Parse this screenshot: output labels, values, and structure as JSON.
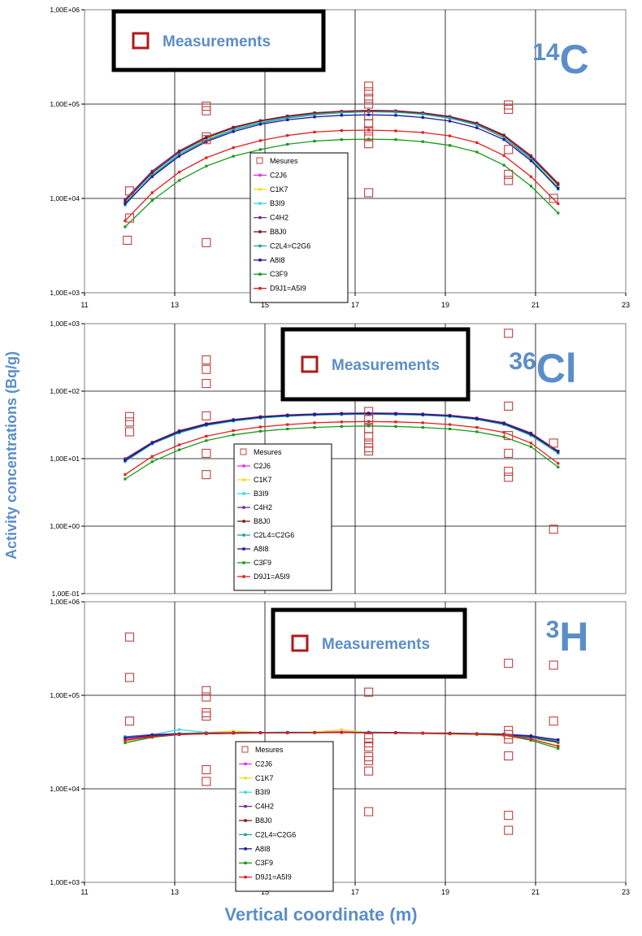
{
  "axes": {
    "ylabel": "Activity concentrations (Bq/g)",
    "xlabel": "Vertical coordinate (m)"
  },
  "legend_series": [
    "Mesures",
    "C2J6",
    "C1K7",
    "B3I9",
    "C4H2",
    "B8J0",
    "C2L4=C2G6",
    "A8I8",
    "C3F9",
    "D9J1=A5I9"
  ],
  "colors": {
    "C2J6": "#e830e8",
    "C1K7": "#f0e020",
    "B3I9": "#40d8e8",
    "C4H2": "#7a2a8a",
    "B8J0": "#7a1a1a",
    "C2L4=C2G6": "#2aa0a0",
    "A8I8": "#1a1aa0",
    "C3F9": "#1a9a1a",
    "D9J1=A5I9": "#e02020",
    "measure": "#c04040",
    "accent": "#5b8ec8"
  },
  "chart_data": [
    {
      "type": "line",
      "panel": "14C",
      "isotope_label": {
        "sup": "14",
        "sym": "C"
      },
      "box_label": "Measurements",
      "xlim": [
        11,
        23
      ],
      "ylim": [
        1000,
        1000000
      ],
      "yscale": "log",
      "x_ticks": [
        11,
        13,
        15,
        17,
        19,
        21,
        23
      ],
      "y_ticks": [
        "1,00E+03",
        "1,00E+04",
        "1,00E+05",
        "1,00E+06"
      ],
      "grid": true,
      "legend_position": "center-bottom",
      "x": [
        11.9,
        12.5,
        13.1,
        13.7,
        14.3,
        14.9,
        15.5,
        16.1,
        16.7,
        17.3,
        17.9,
        18.5,
        19.1,
        19.7,
        20.3,
        20.9,
        21.5
      ],
      "series": [
        {
          "name": "C2J6",
          "values": [
            9500,
            19000,
            31000,
            44000,
            56000,
            66000,
            74000,
            80000,
            83000,
            85000,
            84000,
            80000,
            73000,
            62000,
            46000,
            28000,
            14000
          ]
        },
        {
          "name": "C1K7",
          "values": [
            9300,
            18500,
            30500,
            43000,
            55000,
            65000,
            73000,
            79000,
            82000,
            84000,
            83000,
            79000,
            72000,
            61000,
            45000,
            27000,
            13500
          ]
        },
        {
          "name": "B3I9",
          "values": [
            9000,
            18000,
            30000,
            42000,
            54000,
            64000,
            72000,
            78000,
            81000,
            83000,
            82000,
            78000,
            71000,
            60000,
            44000,
            26500,
            13000
          ]
        },
        {
          "name": "C4H2",
          "values": [
            9800,
            19500,
            32000,
            45000,
            57000,
            67000,
            75000,
            81000,
            84000,
            86000,
            85000,
            81000,
            74000,
            63000,
            47000,
            28500,
            14500
          ]
        },
        {
          "name": "B8J0",
          "values": [
            9400,
            18800,
            31000,
            44000,
            56000,
            66000,
            74000,
            80000,
            83500,
            85000,
            84000,
            80000,
            73000,
            62000,
            46000,
            27500,
            14000
          ]
        },
        {
          "name": "C2L4=C2G6",
          "values": [
            8500,
            17500,
            29000,
            41000,
            53000,
            63000,
            71000,
            77000,
            81000,
            83000,
            82000,
            78000,
            71000,
            60000,
            44000,
            26000,
            12500
          ]
        },
        {
          "name": "A8I8",
          "values": [
            8800,
            17000,
            28000,
            40000,
            51000,
            61000,
            68000,
            73000,
            76000,
            77000,
            76000,
            72000,
            66000,
            56000,
            42000,
            25000,
            12800
          ]
        },
        {
          "name": "C3F9",
          "values": [
            5000,
            9500,
            15500,
            22000,
            28000,
            33000,
            37500,
            40500,
            42000,
            42500,
            42000,
            40000,
            36500,
            31000,
            22500,
            13500,
            7000
          ]
        },
        {
          "name": "D9J1=A5I9",
          "values": [
            5800,
            11500,
            19000,
            27000,
            34500,
            41000,
            46500,
            50500,
            52500,
            53000,
            52000,
            50000,
            46000,
            39000,
            28500,
            17000,
            8800
          ]
        }
      ],
      "measurements": [
        {
          "x": 12.0,
          "y": 12000
        },
        {
          "x": 12.0,
          "y": 6200
        },
        {
          "x": 11.95,
          "y": 3600
        },
        {
          "x": 13.7,
          "y": 95000
        },
        {
          "x": 13.7,
          "y": 85000
        },
        {
          "x": 13.7,
          "y": 45000
        },
        {
          "x": 13.7,
          "y": 42000
        },
        {
          "x": 13.7,
          "y": 3400
        },
        {
          "x": 17.3,
          "y": 155000
        },
        {
          "x": 17.3,
          "y": 135000
        },
        {
          "x": 17.3,
          "y": 115000
        },
        {
          "x": 17.3,
          "y": 100000
        },
        {
          "x": 17.3,
          "y": 75000
        },
        {
          "x": 17.3,
          "y": 62000
        },
        {
          "x": 17.3,
          "y": 52000
        },
        {
          "x": 17.3,
          "y": 45000
        },
        {
          "x": 17.3,
          "y": 38000
        },
        {
          "x": 17.3,
          "y": 11500
        },
        {
          "x": 20.4,
          "y": 98000
        },
        {
          "x": 20.4,
          "y": 88000
        },
        {
          "x": 20.4,
          "y": 33000
        },
        {
          "x": 20.4,
          "y": 18000
        },
        {
          "x": 20.4,
          "y": 15500
        },
        {
          "x": 21.4,
          "y": 10000
        }
      ]
    },
    {
      "type": "line",
      "panel": "36Cl",
      "isotope_label": {
        "sup": "36",
        "sym": "Cl"
      },
      "box_label": "Measurements",
      "xlim": [
        11,
        23
      ],
      "ylim": [
        0.1,
        1000
      ],
      "yscale": "log",
      "x_ticks": [],
      "y_ticks": [
        "1,00E-01",
        "1,00E+00",
        "1,00E+01",
        "1,00E+02",
        "1,00E+03"
      ],
      "grid": true,
      "legend_position": "center-bottom",
      "x": [
        11.9,
        12.5,
        13.1,
        13.7,
        14.3,
        14.9,
        15.5,
        16.1,
        16.7,
        17.3,
        17.9,
        18.5,
        19.1,
        19.7,
        20.3,
        20.9,
        21.5
      ],
      "series": [
        {
          "name": "C2J6",
          "values": [
            9.5,
            17,
            25,
            32,
            37,
            41,
            43.5,
            45,
            46,
            46.5,
            46,
            45,
            43,
            39,
            33,
            23,
            12.5
          ]
        },
        {
          "name": "C1K7",
          "values": [
            9.3,
            16.8,
            24.5,
            31.5,
            36.5,
            40.5,
            43,
            44.5,
            45.5,
            46,
            45.5,
            44.5,
            42.5,
            38.5,
            32.5,
            22.5,
            12.2
          ]
        },
        {
          "name": "B3I9",
          "values": [
            9.0,
            16.5,
            24,
            31,
            36,
            40,
            42.5,
            44,
            45,
            45.5,
            45,
            44,
            42,
            38,
            32,
            22,
            12
          ]
        },
        {
          "name": "C4H2",
          "values": [
            10,
            17.5,
            26,
            33,
            38,
            42,
            44.5,
            46,
            47,
            47.5,
            47,
            46,
            44,
            40,
            34,
            24,
            13
          ]
        },
        {
          "name": "B8J0",
          "values": [
            9.6,
            17.2,
            25.5,
            32.5,
            37.5,
            41.5,
            44,
            45.5,
            46.5,
            47,
            46.5,
            45.5,
            43.5,
            39.5,
            33.5,
            23.5,
            12.8
          ]
        },
        {
          "name": "C2L4=C2G6",
          "values": [
            9.2,
            16.6,
            24.2,
            31.2,
            36.2,
            40.2,
            42.7,
            44.2,
            45.2,
            45.7,
            45.2,
            44.2,
            42.2,
            38.2,
            32.2,
            22.2,
            12.1
          ]
        },
        {
          "name": "A8I8",
          "values": [
            9.4,
            17,
            25,
            32,
            37,
            41,
            43.5,
            45,
            46,
            46.5,
            46,
            45,
            43,
            39,
            33,
            23,
            12.6
          ]
        },
        {
          "name": "C3F9",
          "values": [
            5.0,
            9.0,
            13.5,
            18.5,
            22.5,
            25.5,
            27.5,
            29,
            30,
            30.5,
            30,
            29,
            27.5,
            25,
            21,
            15,
            7.5
          ]
        },
        {
          "name": "D9J1=A5I9",
          "values": [
            5.8,
            10.8,
            16,
            21.5,
            26,
            29.5,
            32,
            34,
            35,
            35.5,
            35,
            34,
            32,
            29,
            24.5,
            17,
            8.5
          ]
        }
      ],
      "measurements": [
        {
          "x": 12.0,
          "y": 42
        },
        {
          "x": 12.0,
          "y": 35
        },
        {
          "x": 12.0,
          "y": 25
        },
        {
          "x": 13.7,
          "y": 290
        },
        {
          "x": 13.7,
          "y": 210
        },
        {
          "x": 13.7,
          "y": 130
        },
        {
          "x": 13.7,
          "y": 43
        },
        {
          "x": 13.7,
          "y": 12
        },
        {
          "x": 13.7,
          "y": 5.8
        },
        {
          "x": 17.3,
          "y": 50
        },
        {
          "x": 17.3,
          "y": 38
        },
        {
          "x": 17.3,
          "y": 28
        },
        {
          "x": 17.3,
          "y": 21
        },
        {
          "x": 17.3,
          "y": 17
        },
        {
          "x": 17.3,
          "y": 14.5
        },
        {
          "x": 17.3,
          "y": 13
        },
        {
          "x": 20.4,
          "y": 720
        },
        {
          "x": 20.4,
          "y": 60
        },
        {
          "x": 20.4,
          "y": 22
        },
        {
          "x": 20.4,
          "y": 12
        },
        {
          "x": 20.4,
          "y": 6.5
        },
        {
          "x": 20.4,
          "y": 5.3
        },
        {
          "x": 21.4,
          "y": 17
        },
        {
          "x": 21.4,
          "y": 0.9
        }
      ]
    },
    {
      "type": "line",
      "panel": "3H",
      "isotope_label": {
        "sup": "3",
        "sym": "H"
      },
      "box_label": "Measurements",
      "xlim": [
        11,
        23
      ],
      "ylim": [
        1000,
        1000000
      ],
      "yscale": "log",
      "x_ticks": [
        11,
        13,
        15,
        17,
        19,
        21,
        23
      ],
      "y_ticks": [
        "1,00E+03",
        "1,00E+04",
        "1,00E+05",
        "1,00E+06"
      ],
      "grid": true,
      "legend_position": "center-bottom",
      "x": [
        11.9,
        12.5,
        13.1,
        13.7,
        14.3,
        14.9,
        15.5,
        16.1,
        16.7,
        17.3,
        17.9,
        18.5,
        19.1,
        19.7,
        20.3,
        20.9,
        21.5
      ],
      "series": [
        {
          "name": "C2J6",
          "values": [
            34000,
            37000,
            38500,
            39000,
            39500,
            39800,
            40000,
            40200,
            41000,
            40000,
            39800,
            39500,
            39000,
            38500,
            38000,
            36000,
            32000
          ]
        },
        {
          "name": "C1K7",
          "values": [
            32000,
            36000,
            39000,
            40000,
            41500,
            40000,
            40000,
            40500,
            43000,
            40000,
            39500,
            39000,
            38500,
            38000,
            37000,
            34000,
            29000
          ]
        },
        {
          "name": "B3I9",
          "values": [
            35000,
            38000,
            43000,
            40000,
            39500,
            40000,
            40500,
            40000,
            40000,
            40500,
            40000,
            39500,
            39000,
            38500,
            38000,
            35000,
            31000
          ]
        },
        {
          "name": "C4H2",
          "values": [
            36000,
            38000,
            39000,
            39500,
            40000,
            40000,
            40000,
            40000,
            40000,
            40000,
            40000,
            39500,
            39500,
            39000,
            38500,
            37000,
            33000
          ]
        },
        {
          "name": "B8J0",
          "values": [
            33000,
            36500,
            38500,
            39000,
            39500,
            39500,
            39700,
            39800,
            40000,
            39800,
            39500,
            39200,
            39000,
            38500,
            38000,
            35500,
            31500
          ]
        },
        {
          "name": "C2L4=C2G6",
          "values": [
            35500,
            37500,
            38800,
            39200,
            39600,
            39800,
            40000,
            40100,
            40200,
            40000,
            39800,
            39500,
            39100,
            38700,
            38200,
            36000,
            32500
          ]
        },
        {
          "name": "A8I8",
          "values": [
            35000,
            37500,
            38500,
            39000,
            39500,
            39700,
            39900,
            40000,
            40000,
            40000,
            39800,
            39400,
            39000,
            38600,
            38100,
            36500,
            33500
          ]
        },
        {
          "name": "C3F9",
          "values": [
            31000,
            35500,
            38000,
            38800,
            39200,
            39500,
            39700,
            39800,
            39900,
            39700,
            39500,
            39200,
            38800,
            38300,
            37500,
            33000,
            27000
          ]
        },
        {
          "name": "D9J1=A5I9",
          "values": [
            33000,
            36000,
            38000,
            38800,
            39200,
            39500,
            39700,
            39800,
            39900,
            39700,
            39500,
            39200,
            38800,
            38300,
            37500,
            34000,
            28500
          ]
        }
      ],
      "measurements": [
        {
          "x": 12.0,
          "y": 420000
        },
        {
          "x": 12.0,
          "y": 155000
        },
        {
          "x": 12.0,
          "y": 53000
        },
        {
          "x": 13.7,
          "y": 112000
        },
        {
          "x": 13.7,
          "y": 96000
        },
        {
          "x": 13.7,
          "y": 65000
        },
        {
          "x": 13.7,
          "y": 60000
        },
        {
          "x": 13.7,
          "y": 16000
        },
        {
          "x": 13.7,
          "y": 12000
        },
        {
          "x": 17.3,
          "y": 108000
        },
        {
          "x": 17.3,
          "y": 35000
        },
        {
          "x": 17.3,
          "y": 31000
        },
        {
          "x": 17.3,
          "y": 28000
        },
        {
          "x": 17.3,
          "y": 22000
        },
        {
          "x": 17.3,
          "y": 20000
        },
        {
          "x": 17.3,
          "y": 15500
        },
        {
          "x": 17.3,
          "y": 5700
        },
        {
          "x": 20.4,
          "y": 220000
        },
        {
          "x": 20.4,
          "y": 42000
        },
        {
          "x": 20.4,
          "y": 38000
        },
        {
          "x": 20.4,
          "y": 34000
        },
        {
          "x": 20.4,
          "y": 22500
        },
        {
          "x": 20.4,
          "y": 5200
        },
        {
          "x": 20.4,
          "y": 3600
        },
        {
          "x": 21.4,
          "y": 210000
        },
        {
          "x": 21.4,
          "y": 53000
        }
      ]
    }
  ]
}
